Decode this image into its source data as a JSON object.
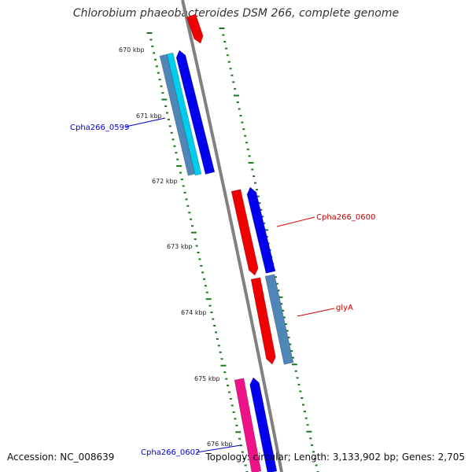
{
  "title": "Chlorobium phaeobacteroides DSM 266, complete genome",
  "footer": {
    "accession": "Accession: NC_008639",
    "summary": "Topology: circular; Length: 3,133,902 bp; Genes: 2,705"
  },
  "axis": {
    "ticks": [
      {
        "label": "670 kbp"
      },
      {
        "label": "671 kbp"
      },
      {
        "label": "672 kbp"
      },
      {
        "label": "673 kbp"
      },
      {
        "label": "674 kbp"
      },
      {
        "label": "675 kbp"
      },
      {
        "label": "676 kbp"
      }
    ]
  },
  "genes": [
    {
      "name": "Cpha266_0599",
      "color": "#0000cc"
    },
    {
      "name": "Cpha266_0600",
      "color": "#cc0000"
    },
    {
      "name": "glyA",
      "color": "#cc0000"
    },
    {
      "name": "Cpha266_0602",
      "color": "#0000cc"
    }
  ],
  "colors": {
    "backbone": "#808080",
    "tick": "#1a7a1a",
    "forward_cds": "#0000ee",
    "forward_gene": "#00ccee",
    "forward_rna": "#4f86b8",
    "reverse_cds": "#ee0000",
    "reverse_gene": "#ff3366",
    "reverse_misc": "#ee1188"
  }
}
